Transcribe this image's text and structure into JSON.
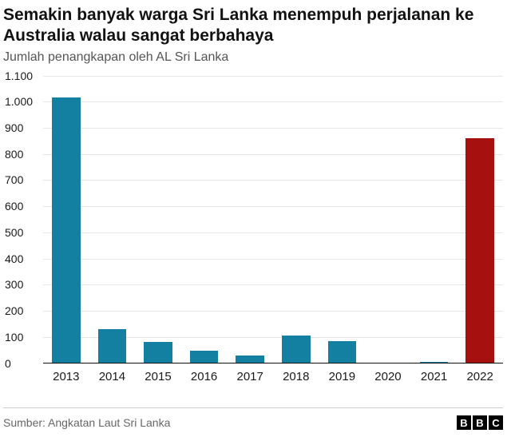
{
  "header": {
    "title": "Semakin banyak warga Sri Lanka menempuh perjalanan ke Australia walau sangat berbahaya",
    "subtitle": "Jumlah penangkapan oleh AL Sri Lanka"
  },
  "chart_data": {
    "type": "bar",
    "title": "Jumlah penangkapan oleh AL Sri Lanka",
    "categories": [
      "2013",
      "2014",
      "2015",
      "2016",
      "2017",
      "2018",
      "2019",
      "2020",
      "2021",
      "2022"
    ],
    "values": [
      1015,
      130,
      80,
      48,
      30,
      105,
      83,
      0,
      6,
      860
    ],
    "xlabel": "",
    "ylabel": "",
    "ylim": [
      0,
      1100
    ],
    "yticks": [
      0,
      100,
      200,
      300,
      400,
      500,
      600,
      700,
      800,
      900,
      1000,
      1100
    ],
    "ytick_labels": [
      "0",
      "100",
      "200",
      "300",
      "400",
      "500",
      "600",
      "700",
      "800",
      "900",
      "1.000",
      "1.100"
    ],
    "grid": true,
    "legend": "none",
    "bar_color": "#1380A1",
    "highlight_color": "#A6110F",
    "highlight_index": 9
  },
  "footer": {
    "source": "Sumber: Angkatan Laut Sri Lanka",
    "logo_letters": [
      "B",
      "B",
      "C"
    ]
  }
}
